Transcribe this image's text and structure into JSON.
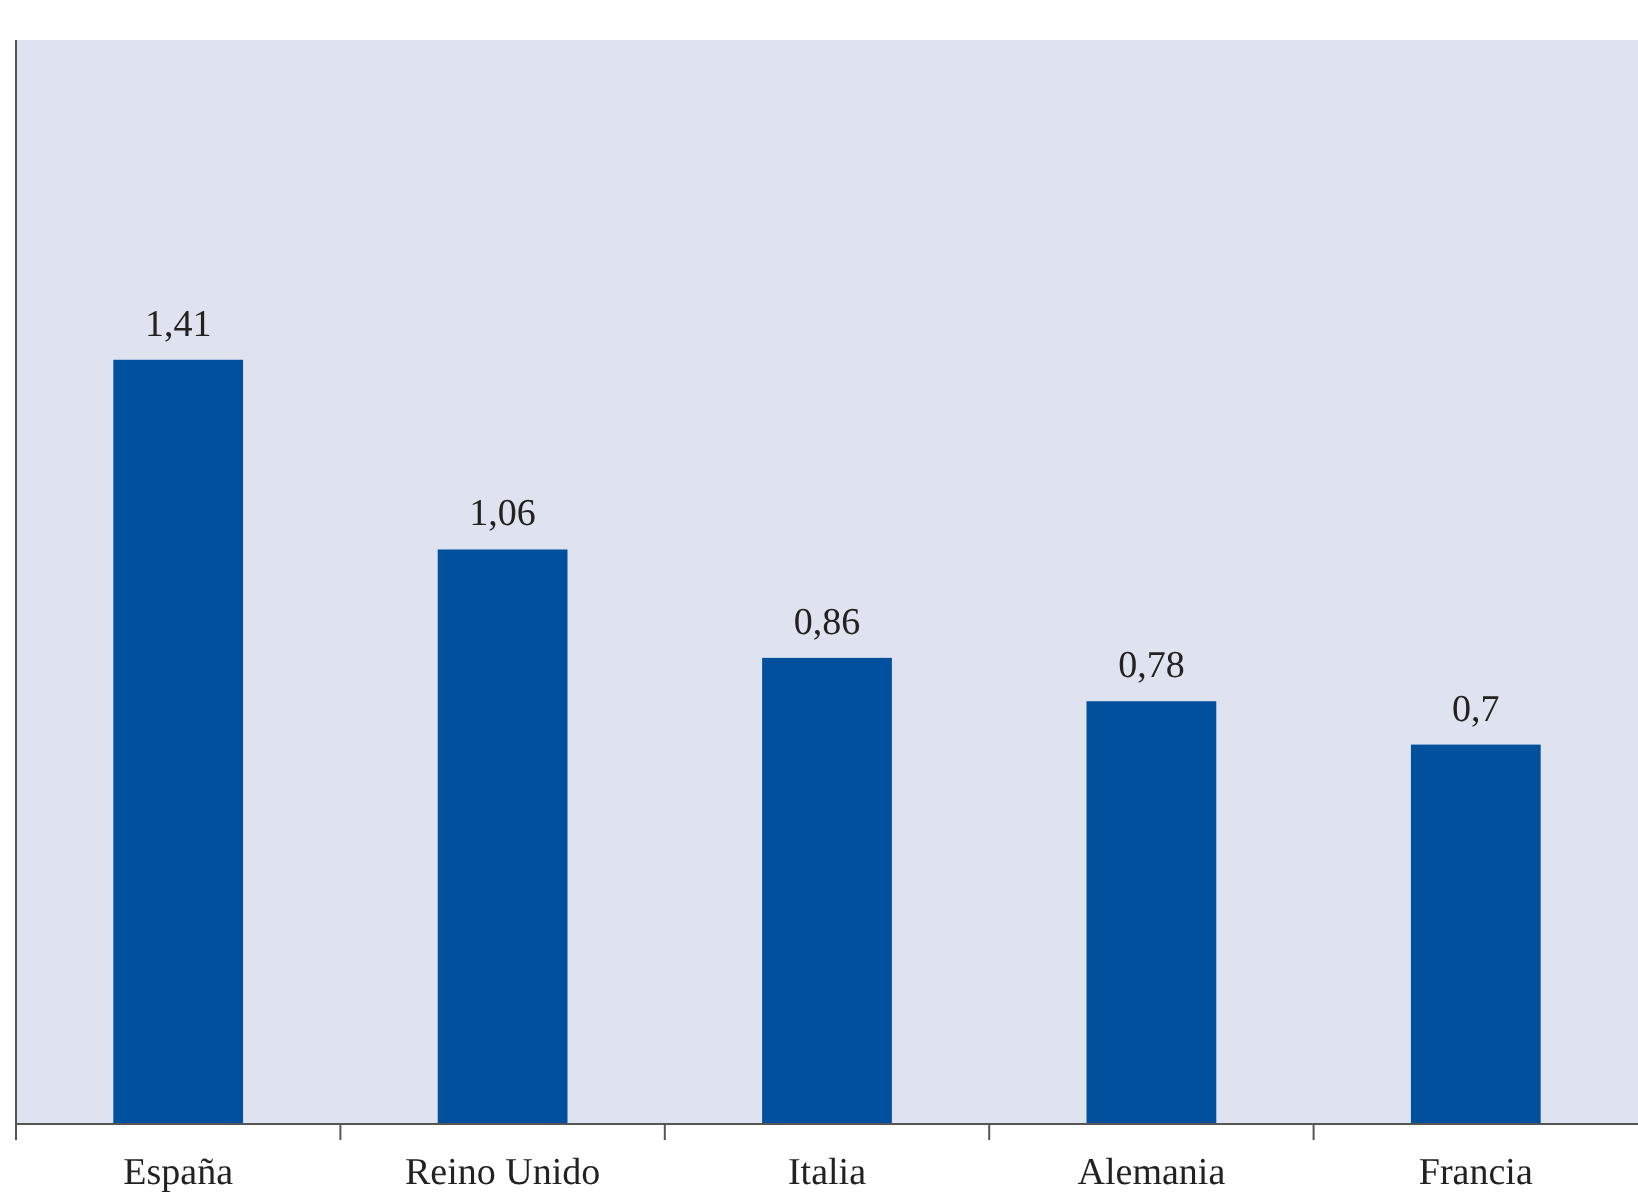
{
  "chart_data": {
    "type": "bar",
    "categories": [
      "España",
      "Reino Unido",
      "Italia",
      "Alemania",
      "Francia"
    ],
    "values": [
      1.41,
      1.06,
      0.86,
      0.78,
      0.7
    ],
    "value_labels": [
      "1,41",
      "1,06",
      "0,86",
      "0,78",
      "0,7"
    ],
    "color": "#00509e",
    "ylim": [
      0,
      2
    ],
    "tick_labels": "x"
  }
}
